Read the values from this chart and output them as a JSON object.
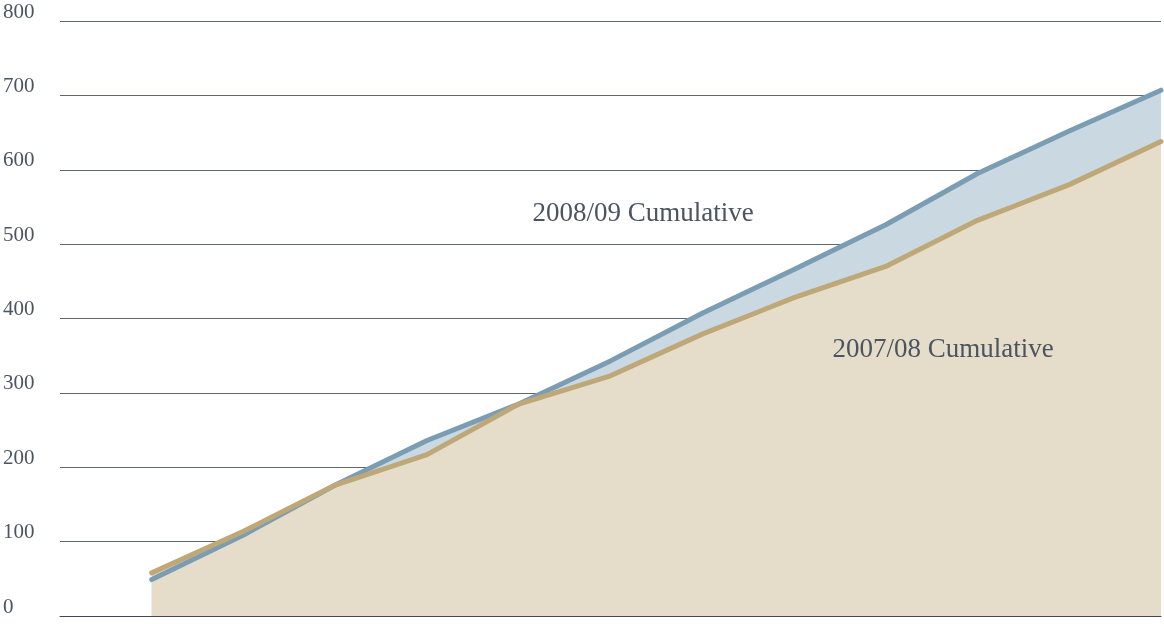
{
  "chart_data": {
    "type": "area",
    "categories": [
      null,
      null,
      null,
      null,
      null,
      null,
      null,
      null,
      null,
      null,
      null,
      null
    ],
    "series": [
      {
        "name": "2008/09 Cumulative",
        "color": "#7b9db4",
        "values": [
          49,
          109,
          176,
          236,
          285,
          343,
          407,
          466,
          526,
          595,
          652,
          707
        ]
      },
      {
        "name": "2007/08 Cumulative",
        "color": "#bfa877",
        "values": [
          58,
          114,
          176,
          217,
          285,
          323,
          379,
          428,
          470,
          532,
          580,
          638
        ]
      }
    ],
    "ylim": [
      0,
      800
    ],
    "yticks": [
      0,
      100,
      200,
      300,
      400,
      500,
      600,
      700,
      800
    ],
    "grid": "y",
    "legend": false,
    "marker": "none",
    "line_style": "solid"
  }
}
